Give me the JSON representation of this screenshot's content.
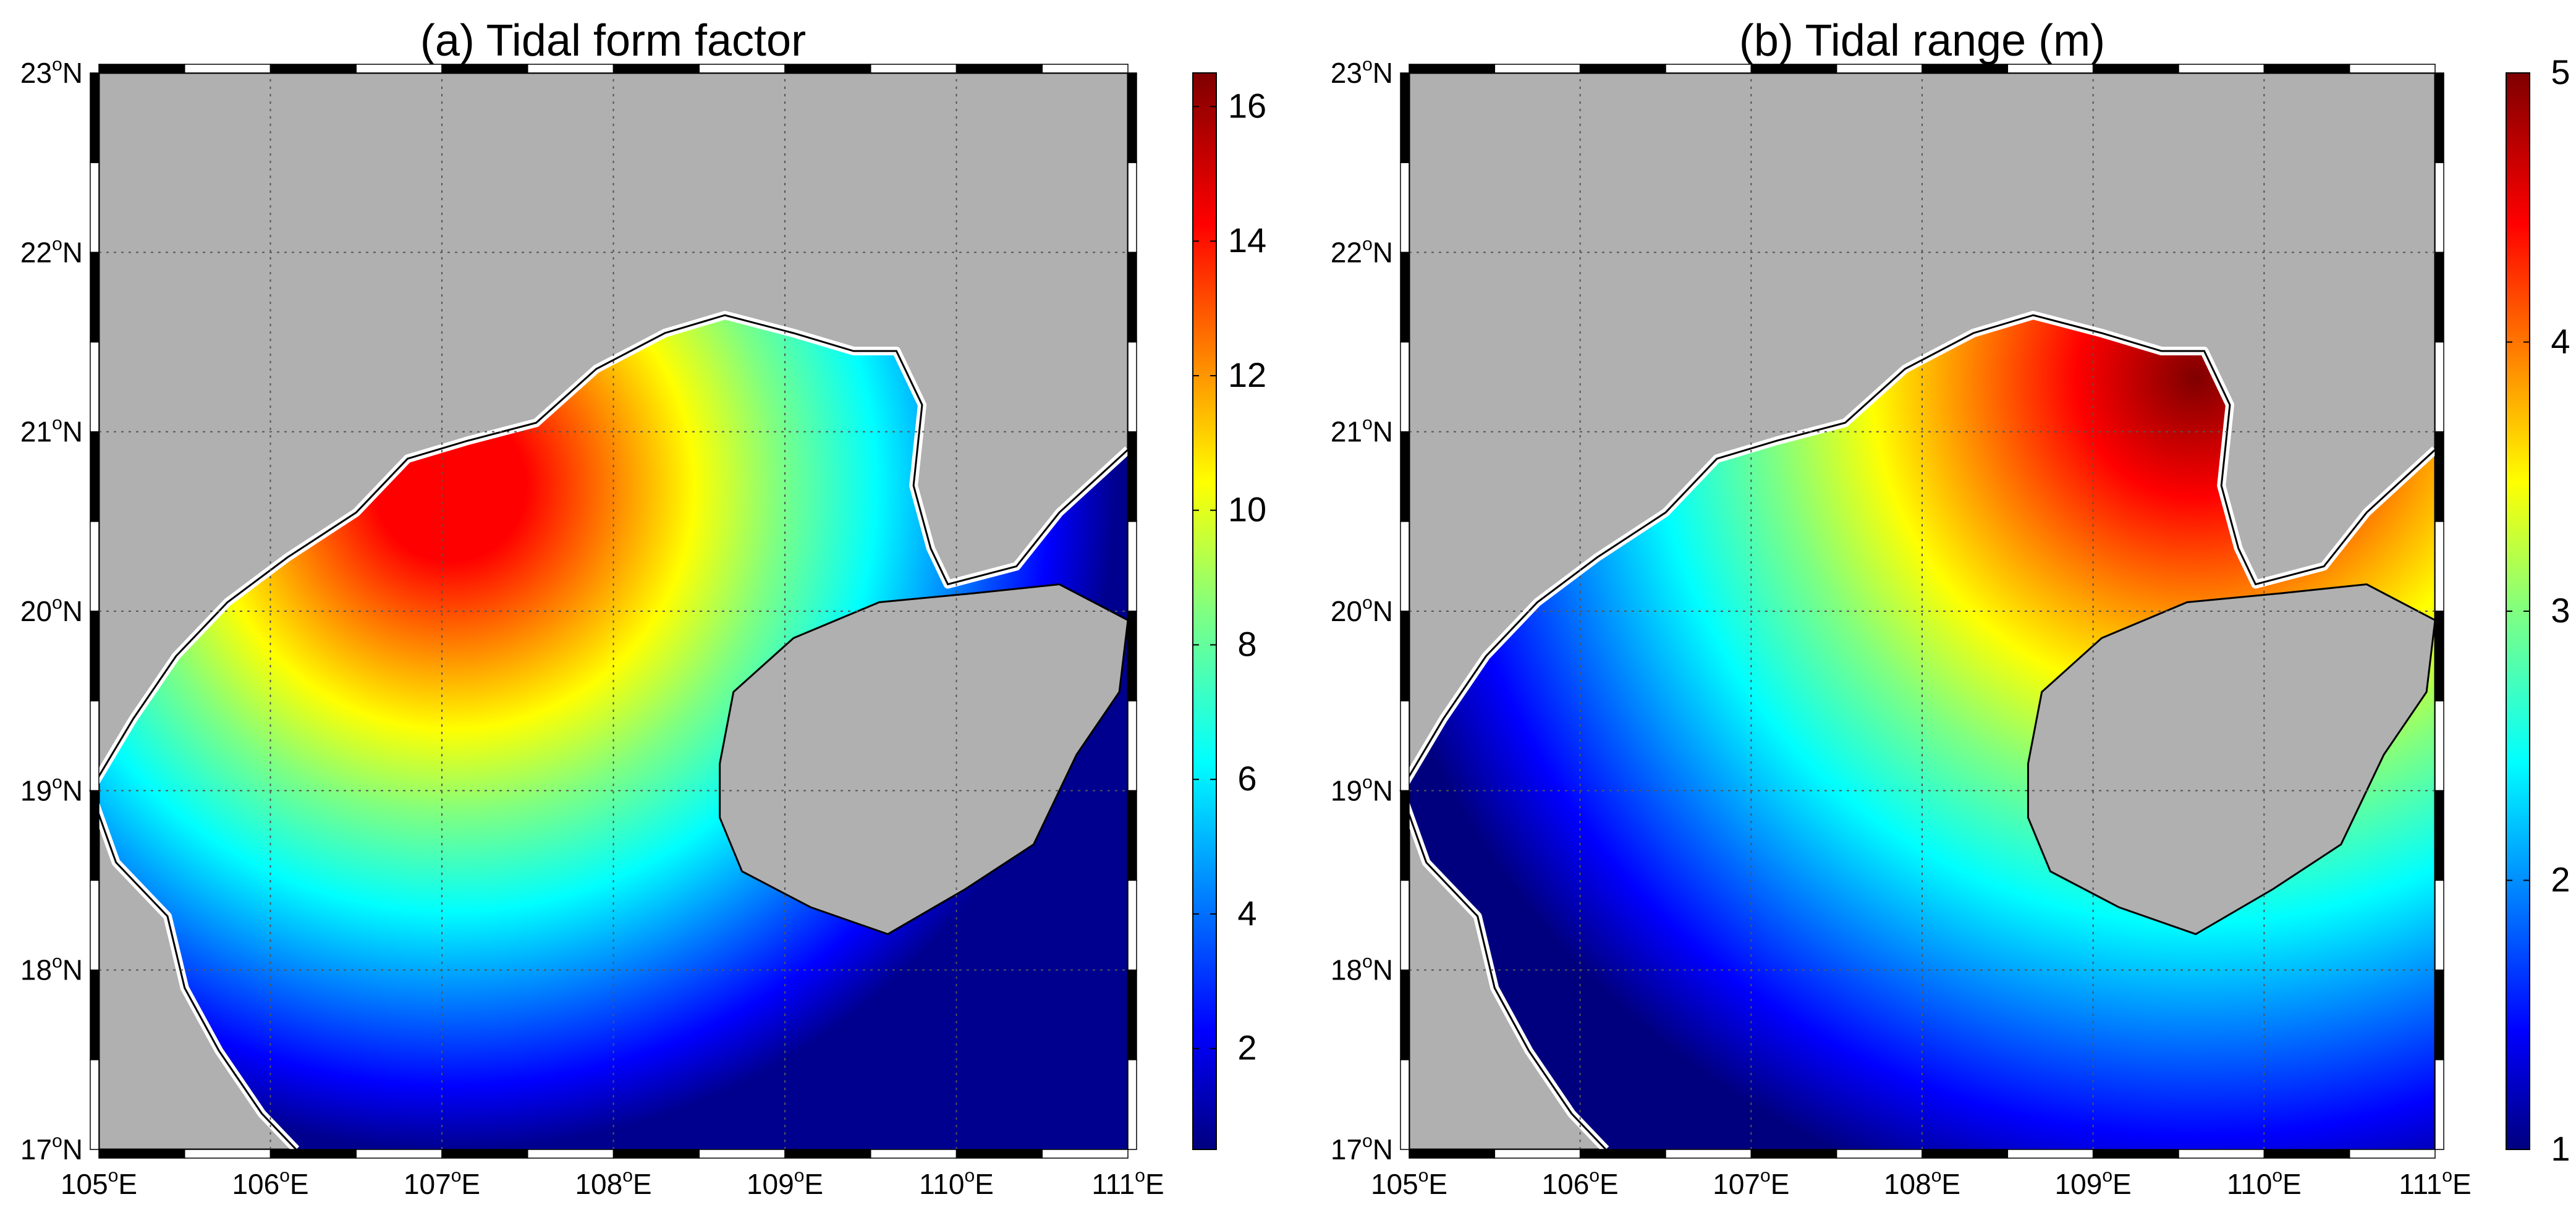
{
  "panels": [
    {
      "id": "a",
      "title": "(a) Tidal form factor",
      "colorbar": {
        "min": 0.5,
        "max": 16.5,
        "ticks": [
          "2",
          "4",
          "6",
          "8",
          "10",
          "12",
          "14",
          "16"
        ],
        "tick_values": [
          2,
          4,
          6,
          8,
          10,
          12,
          14,
          16
        ]
      },
      "peak": {
        "lon": 107.05,
        "lat": 20.7,
        "value": 16
      },
      "low": {
        "lon": 107.5,
        "lat": 17.2,
        "value": 0.8
      }
    },
    {
      "id": "b",
      "title": "(b) Tidal range (m)",
      "colorbar": {
        "min": 1,
        "max": 5,
        "ticks": [
          "1",
          "2",
          "3",
          "4",
          "5"
        ],
        "tick_values": [
          1,
          2,
          3,
          4,
          5
        ]
      },
      "peak": {
        "lon": 109.6,
        "lat": 21.3,
        "value": 5
      },
      "low": {
        "lon": 107.6,
        "lat": 17.2,
        "value": 1
      }
    }
  ],
  "map": {
    "lon_range": [
      105,
      111
    ],
    "lat_range": [
      17,
      23
    ],
    "lon_labels": [
      {
        "deg": "105",
        "suf": "E"
      },
      {
        "deg": "106",
        "suf": "E"
      },
      {
        "deg": "107",
        "suf": "E"
      },
      {
        "deg": "108",
        "suf": "E"
      },
      {
        "deg": "109",
        "suf": "E"
      },
      {
        "deg": "110",
        "suf": "E"
      },
      {
        "deg": "111",
        "suf": "E"
      }
    ],
    "lat_labels": [
      {
        "deg": "17",
        "suf": "N"
      },
      {
        "deg": "18",
        "suf": "N"
      },
      {
        "deg": "19",
        "suf": "N"
      },
      {
        "deg": "20",
        "suf": "N"
      },
      {
        "deg": "21",
        "suf": "N"
      },
      {
        "deg": "22",
        "suf": "N"
      },
      {
        "deg": "23",
        "suf": "N"
      }
    ],
    "land_color": "#b0b0b0",
    "grid": true
  },
  "colors": {
    "colormap": "jet"
  }
}
